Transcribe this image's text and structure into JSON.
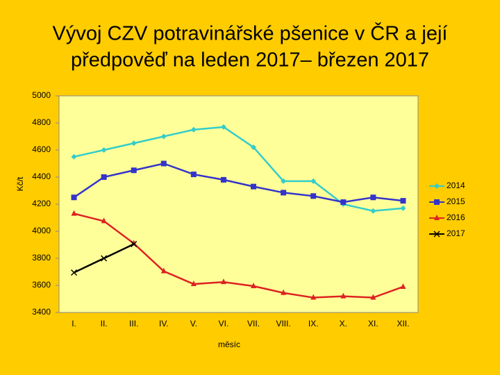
{
  "chart_data": {
    "type": "line",
    "title": [
      "Vývoj CZV potravinářské pšenice v ČR a její",
      "předpověď na leden 2017– březen 2017"
    ],
    "y_label": "Kč/t",
    "x_label": "měsíc",
    "categories": [
      "I.",
      "II.",
      "III.",
      "IV.",
      "V.",
      "VI.",
      "VII.",
      "VIII.",
      "IX.",
      "X.",
      "XI.",
      "XII."
    ],
    "series": [
      {
        "name": "2014",
        "color": "#33cccc",
        "marker": "diamond",
        "values": [
          4550,
          4600,
          4650,
          4700,
          4750,
          4770,
          4620,
          4370,
          4370,
          4200,
          4150,
          4170
        ]
      },
      {
        "name": "2015",
        "color": "#3333cc",
        "marker": "square",
        "values": [
          4250,
          4400,
          4450,
          4500,
          4420,
          4380,
          4330,
          4285,
          4260,
          4215,
          4250,
          4225
        ]
      },
      {
        "name": "2016",
        "color": "#dd2222",
        "marker": "triangle",
        "values": [
          4130,
          4075,
          3910,
          3705,
          3610,
          3625,
          3595,
          3545,
          3510,
          3520,
          3510,
          3590
        ]
      },
      {
        "name": "2017",
        "color": "#000000",
        "marker": "x",
        "values": [
          3695,
          3800,
          3905,
          null,
          null,
          null,
          null,
          null,
          null,
          null,
          null,
          null
        ]
      }
    ],
    "ylim": [
      3400,
      5000
    ],
    "yticks": [
      3400,
      3600,
      3800,
      4000,
      4200,
      4400,
      4600,
      4800,
      5000
    ],
    "grid": false,
    "legend": "right"
  }
}
